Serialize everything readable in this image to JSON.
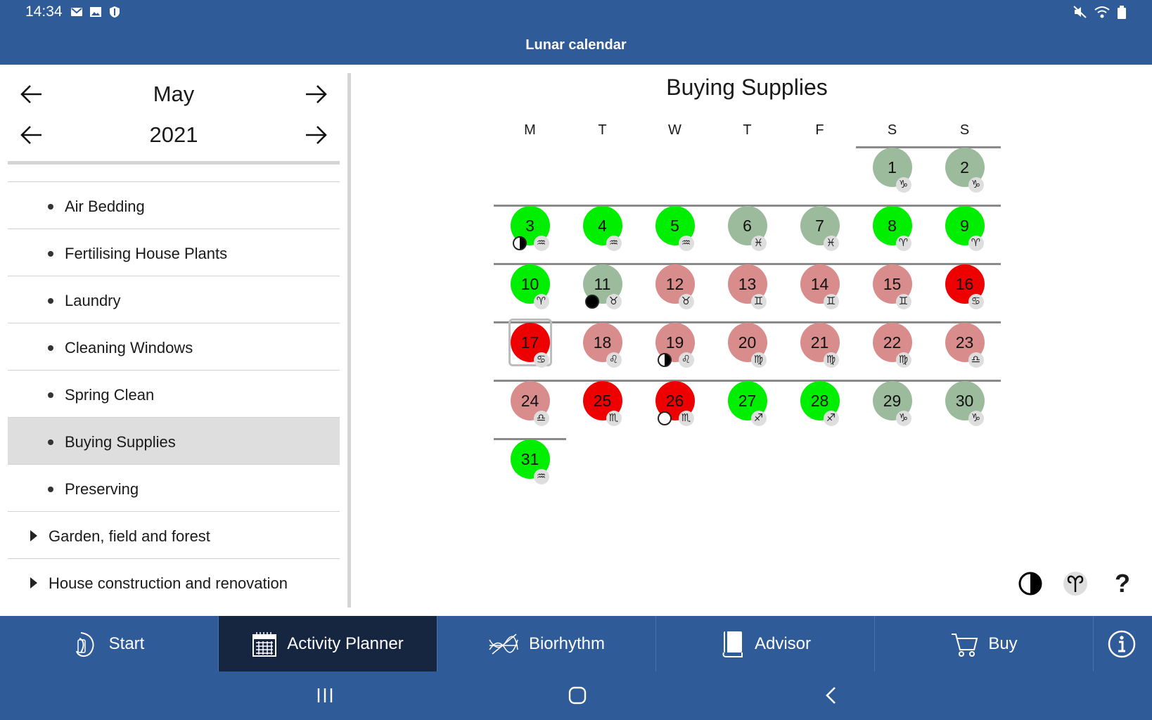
{
  "status_bar": {
    "time": "14:34",
    "left_icons": [
      "mail-icon",
      "image-icon",
      "shield-icon"
    ],
    "right_icons": [
      "mute-icon",
      "wifi-icon",
      "battery-icon"
    ]
  },
  "app": {
    "title": "Lunar calendar"
  },
  "month_nav": {
    "month": "May",
    "year": "2021"
  },
  "list": {
    "items": [
      {
        "label": "Air Bedding",
        "selected": false
      },
      {
        "label": "Fertilising House Plants",
        "selected": false
      },
      {
        "label": "Laundry",
        "selected": false
      },
      {
        "label": "Cleaning Windows",
        "selected": false
      },
      {
        "label": "Spring Clean",
        "selected": false
      },
      {
        "label": "Buying Supplies",
        "selected": true
      },
      {
        "label": "Preserving",
        "selected": false
      }
    ],
    "categories": [
      {
        "label": "Garden, field and forest"
      },
      {
        "label": "House construction and renovation"
      }
    ]
  },
  "calendar": {
    "title": "Buying Supplies",
    "weekdays": [
      "M",
      "T",
      "W",
      "T",
      "F",
      "S",
      "S"
    ],
    "today": 17,
    "status_colors": {
      "good": "#00ee00",
      "neutral": "#9cbb9c",
      "bad": "#d98c8c",
      "worst": "#ee0000"
    },
    "days": [
      {
        "d": "1",
        "status": "neutral",
        "zodiac": "♑"
      },
      {
        "d": "2",
        "status": "neutral",
        "zodiac": "♑"
      },
      {
        "d": "3",
        "status": "good",
        "zodiac": "♒",
        "moon": "half"
      },
      {
        "d": "4",
        "status": "good",
        "zodiac": "♒"
      },
      {
        "d": "5",
        "status": "good",
        "zodiac": "♒"
      },
      {
        "d": "6",
        "status": "neutral",
        "zodiac": "♓"
      },
      {
        "d": "7",
        "status": "neutral",
        "zodiac": "♓"
      },
      {
        "d": "8",
        "status": "good",
        "zodiac": "♈"
      },
      {
        "d": "9",
        "status": "good",
        "zodiac": "♈"
      },
      {
        "d": "10",
        "status": "good",
        "zodiac": "♈"
      },
      {
        "d": "11",
        "status": "neutral",
        "zodiac": "♉",
        "moon": "new"
      },
      {
        "d": "12",
        "status": "bad",
        "zodiac": "♉"
      },
      {
        "d": "13",
        "status": "bad",
        "zodiac": "♊"
      },
      {
        "d": "14",
        "status": "bad",
        "zodiac": "♊"
      },
      {
        "d": "15",
        "status": "bad",
        "zodiac": "♊"
      },
      {
        "d": "16",
        "status": "worst",
        "zodiac": "♋"
      },
      {
        "d": "17",
        "status": "worst",
        "zodiac": "♋"
      },
      {
        "d": "18",
        "status": "bad",
        "zodiac": "♌"
      },
      {
        "d": "19",
        "status": "bad",
        "zodiac": "♌",
        "moon": "half"
      },
      {
        "d": "20",
        "status": "bad",
        "zodiac": "♍"
      },
      {
        "d": "21",
        "status": "bad",
        "zodiac": "♍"
      },
      {
        "d": "22",
        "status": "bad",
        "zodiac": "♍"
      },
      {
        "d": "23",
        "status": "bad",
        "zodiac": "♎"
      },
      {
        "d": "24",
        "status": "bad",
        "zodiac": "♎"
      },
      {
        "d": "25",
        "status": "worst",
        "zodiac": "♏"
      },
      {
        "d": "26",
        "status": "worst",
        "zodiac": "♏",
        "moon": "full"
      },
      {
        "d": "27",
        "status": "good",
        "zodiac": "♐"
      },
      {
        "d": "28",
        "status": "good",
        "zodiac": "♐"
      },
      {
        "d": "29",
        "status": "neutral",
        "zodiac": "♑"
      },
      {
        "d": "30",
        "status": "neutral",
        "zodiac": "♑"
      },
      {
        "d": "31",
        "status": "good",
        "zodiac": "♒"
      }
    ]
  },
  "tools": {
    "moon_phase_icon": "moon-phase-icon",
    "zodiac_icon": "aries-icon",
    "help_label": "?"
  },
  "bottom_nav": {
    "tabs": [
      {
        "label": "Start",
        "icon": "moon-icon",
        "active": false
      },
      {
        "label": "Activity Planner",
        "icon": "calendar-icon",
        "active": true
      },
      {
        "label": "Biorhythm",
        "icon": "biorhythm-icon",
        "active": false
      },
      {
        "label": "Advisor",
        "icon": "book-icon",
        "active": false
      },
      {
        "label": "Buy",
        "icon": "cart-icon",
        "active": false
      }
    ],
    "info_icon": "info-icon"
  },
  "system_nav": [
    "recents-icon",
    "home-icon",
    "back-icon"
  ]
}
